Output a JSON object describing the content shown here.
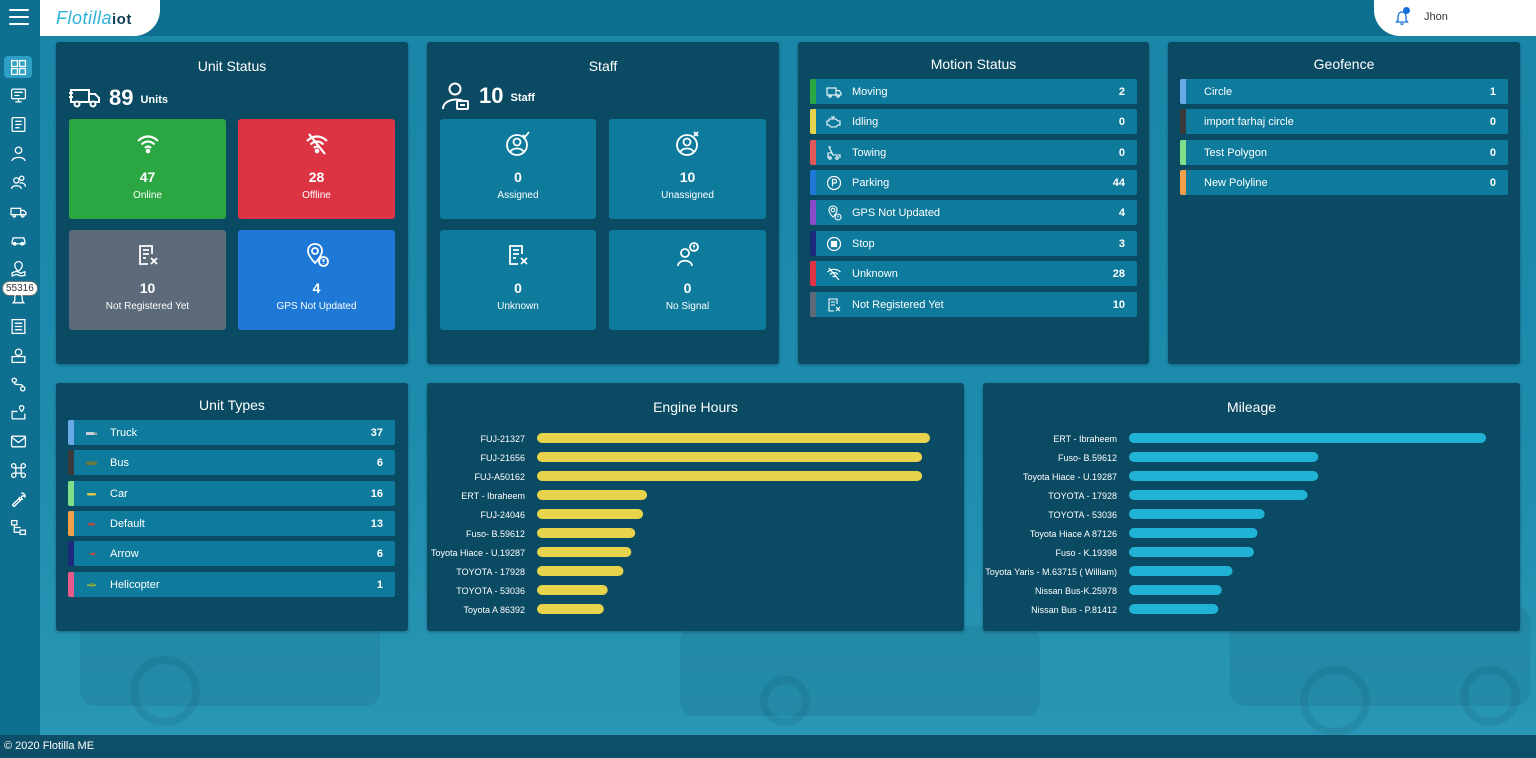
{
  "app": {
    "logo_main": "Flotilla",
    "logo_sub": "iot",
    "user": "Jhon",
    "footer": "© 2020 Flotilla ME",
    "notification_count": "55316"
  },
  "unit_status": {
    "title": "Unit Status",
    "total": "89",
    "total_label": "Units",
    "tiles": [
      {
        "label": "Online",
        "value": "47",
        "color": "#2aa642",
        "icon": "wifi-icon"
      },
      {
        "label": "Offline",
        "value": "28",
        "color": "#dd3444",
        "icon": "wifi-off-icon"
      },
      {
        "label": "Not Registered Yet",
        "value": "10",
        "color": "#5d6a7a",
        "icon": "document-x-icon"
      },
      {
        "label": "GPS Not Updated",
        "value": "4",
        "color": "#1d78d6",
        "icon": "map-pin-alert-icon"
      }
    ]
  },
  "staff": {
    "title": "Staff",
    "total": "10",
    "total_label": "Staff",
    "tiles": [
      {
        "label": "Assigned",
        "value": "0"
      },
      {
        "label": "Unassigned",
        "value": "10"
      },
      {
        "label": "Unknown",
        "value": "0"
      },
      {
        "label": "No Signal",
        "value": "0"
      }
    ]
  },
  "motion_status": {
    "title": "Motion Status",
    "rows": [
      {
        "label": "Moving",
        "value": "2",
        "color": "#2aa642"
      },
      {
        "label": "Idling",
        "value": "0",
        "color": "#e8d34d"
      },
      {
        "label": "Towing",
        "value": "0",
        "color": "#e05858"
      },
      {
        "label": "Parking",
        "value": "44",
        "color": "#1d78d6"
      },
      {
        "label": "GPS Not Updated",
        "value": "4",
        "color": "#8a4bc8"
      },
      {
        "label": "Stop",
        "value": "3",
        "color": "#1b2a7a"
      },
      {
        "label": "Unknown",
        "value": "28",
        "color": "#dd3444"
      },
      {
        "label": "Not Registered Yet",
        "value": "10",
        "color": "#5d6a7a"
      }
    ]
  },
  "geofence": {
    "title": "Geofence",
    "rows": [
      {
        "label": "Circle",
        "value": "1",
        "color": "#6aa9e8"
      },
      {
        "label": "import farhaj circle",
        "value": "0",
        "color": "#3a3a3a"
      },
      {
        "label": "Test Polygon",
        "value": "0",
        "color": "#7ee08a"
      },
      {
        "label": "New Polyline",
        "value": "0",
        "color": "#f0a04b"
      }
    ]
  },
  "unit_types": {
    "title": "Unit Types",
    "rows": [
      {
        "label": "Truck",
        "value": "37",
        "color": "#6aa9e8"
      },
      {
        "label": "Bus",
        "value": "6",
        "color": "#3a3a3a"
      },
      {
        "label": "Car",
        "value": "16",
        "color": "#7ee08a"
      },
      {
        "label": "Default",
        "value": "13",
        "color": "#f0a04b"
      },
      {
        "label": "Arrow",
        "value": "6",
        "color": "#1b2a7a"
      },
      {
        "label": "Helicopter",
        "value": "1",
        "color": "#e85a8a"
      }
    ]
  },
  "chart_data": [
    {
      "type": "bar",
      "orientation": "horizontal",
      "title": "Engine Hours",
      "color": "#e8d34d",
      "categories": [
        "FUJ-21327",
        "FUJ-21656",
        "FUJ-A50162",
        "ERT - Ibraheem",
        "FUJ-24046",
        "Fuso- B.59612",
        "Toyota Hiace - U.19287",
        "TOYOTA - 17928",
        "TOYOTA - 53036",
        "Toyota A 86392"
      ],
      "values": [
        100,
        98,
        98,
        28,
        27,
        25,
        24,
        22,
        18,
        17
      ]
    },
    {
      "type": "bar",
      "orientation": "horizontal",
      "title": "Mileage",
      "color": "#21b3d6",
      "categories": [
        "ERT - Ibraheem",
        "Fuso- B.59612",
        "Toyota Hiace - U.19287",
        "TOYOTA - 17928",
        "TOYOTA - 53036",
        "Toyota Hiace A 87126",
        "Fuso - K.19398",
        "Toyota Yaris - M.63715 ( William)",
        "Nissan Bus-K.25978",
        "Nissan Bus - P.81412"
      ],
      "values": [
        100,
        53,
        53,
        50,
        38,
        36,
        35,
        29,
        26,
        25
      ]
    }
  ]
}
